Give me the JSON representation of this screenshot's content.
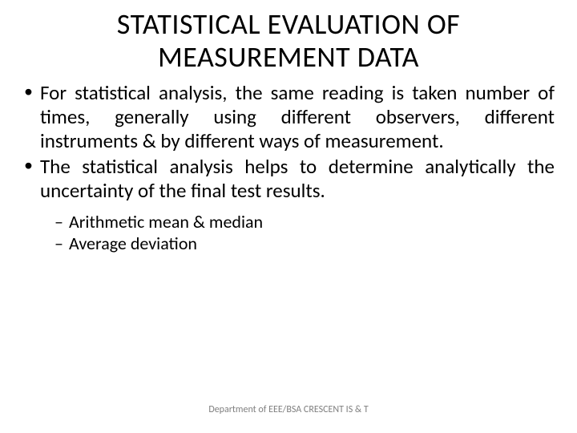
{
  "title_line1": "STATISTICAL EVALUATION OF",
  "title_line2": "MEASUREMENT DATA",
  "bullets": [
    "For statistical analysis, the same reading is taken number of times, generally using different observers, different instruments & by different ways of measurement.",
    "The statistical analysis helps to determine analytically the uncertainty of the final test results."
  ],
  "sub_bullets": [
    "Arithmetic mean & median",
    "Average deviation"
  ],
  "footer": "Department of EEE/BSA CRESCENT IS & T",
  "colors": {
    "background": "#ffffff",
    "text": "#000000",
    "footer_text": "#7f7f7f"
  },
  "typography": {
    "title_fontsize": 36,
    "bullet_fontsize": 25,
    "sub_bullet_fontsize": 22,
    "footer_fontsize": 12,
    "font_family": "Calibri"
  }
}
